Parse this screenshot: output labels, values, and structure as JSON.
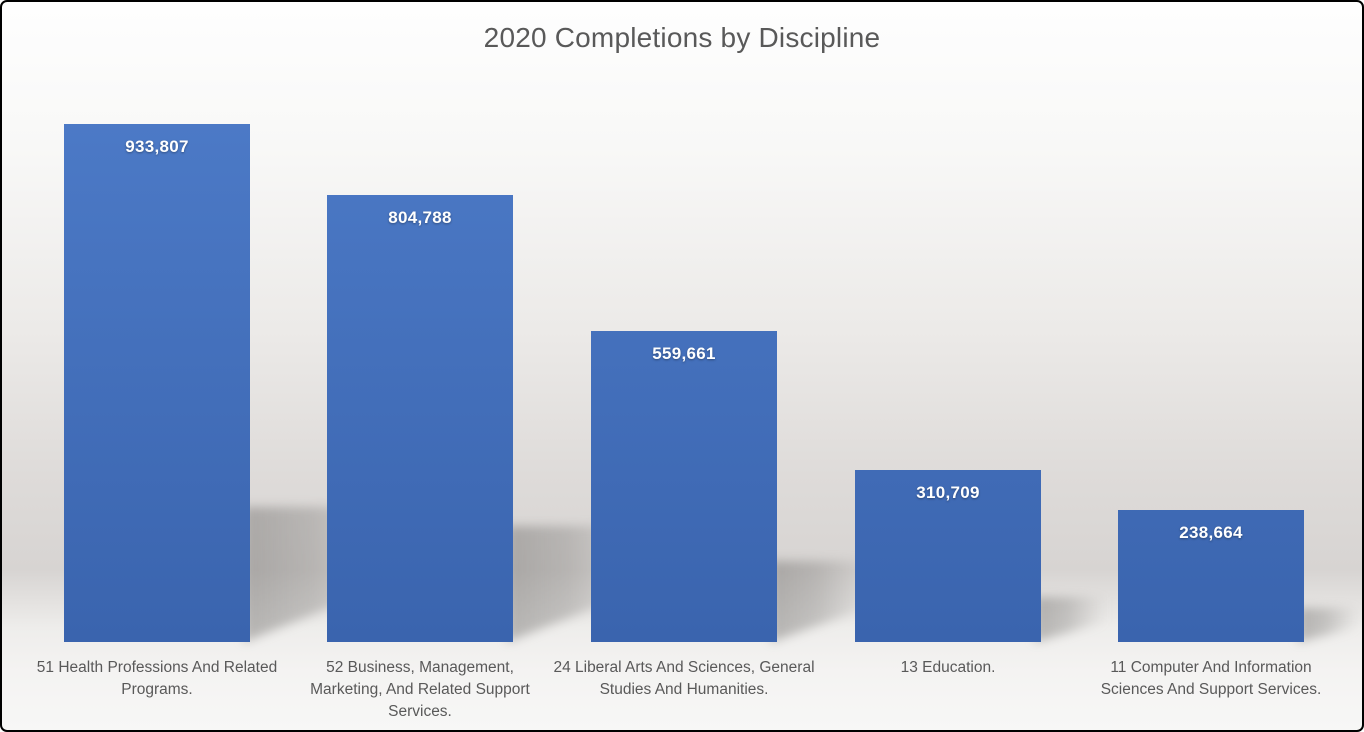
{
  "chart_data": {
    "type": "bar",
    "title": "2020 Completions by Discipline",
    "categories": [
      "51 Health Professions And Related Programs.",
      "52 Business, Management, Marketing, And Related Support Services.",
      "24 Liberal Arts And Sciences, General Studies And Humanities.",
      "13 Education.",
      "11 Computer And Information Sciences And Support Services."
    ],
    "values": [
      933807,
      804788,
      559661,
      310709,
      238664
    ],
    "value_labels": [
      "933,807",
      "804,788",
      "559,661",
      "310,709",
      "238,664"
    ],
    "xlabel": "",
    "ylabel": "",
    "ylim": [
      0,
      1000000
    ],
    "grid": false,
    "legend": "none",
    "data_labels_position": "inside-top",
    "colors": {
      "bar_top": "#4d7bc8",
      "bar_bottom": "#3a64ae",
      "title_text": "#595959",
      "category_text": "#595959",
      "value_text": "#ffffff",
      "bar_shadow": "#7b7977",
      "background_top": "#fefefe",
      "background_floor": "#d7d4d2",
      "background_bottom": "#f7f7f6",
      "frame_border": "#000000"
    }
  }
}
